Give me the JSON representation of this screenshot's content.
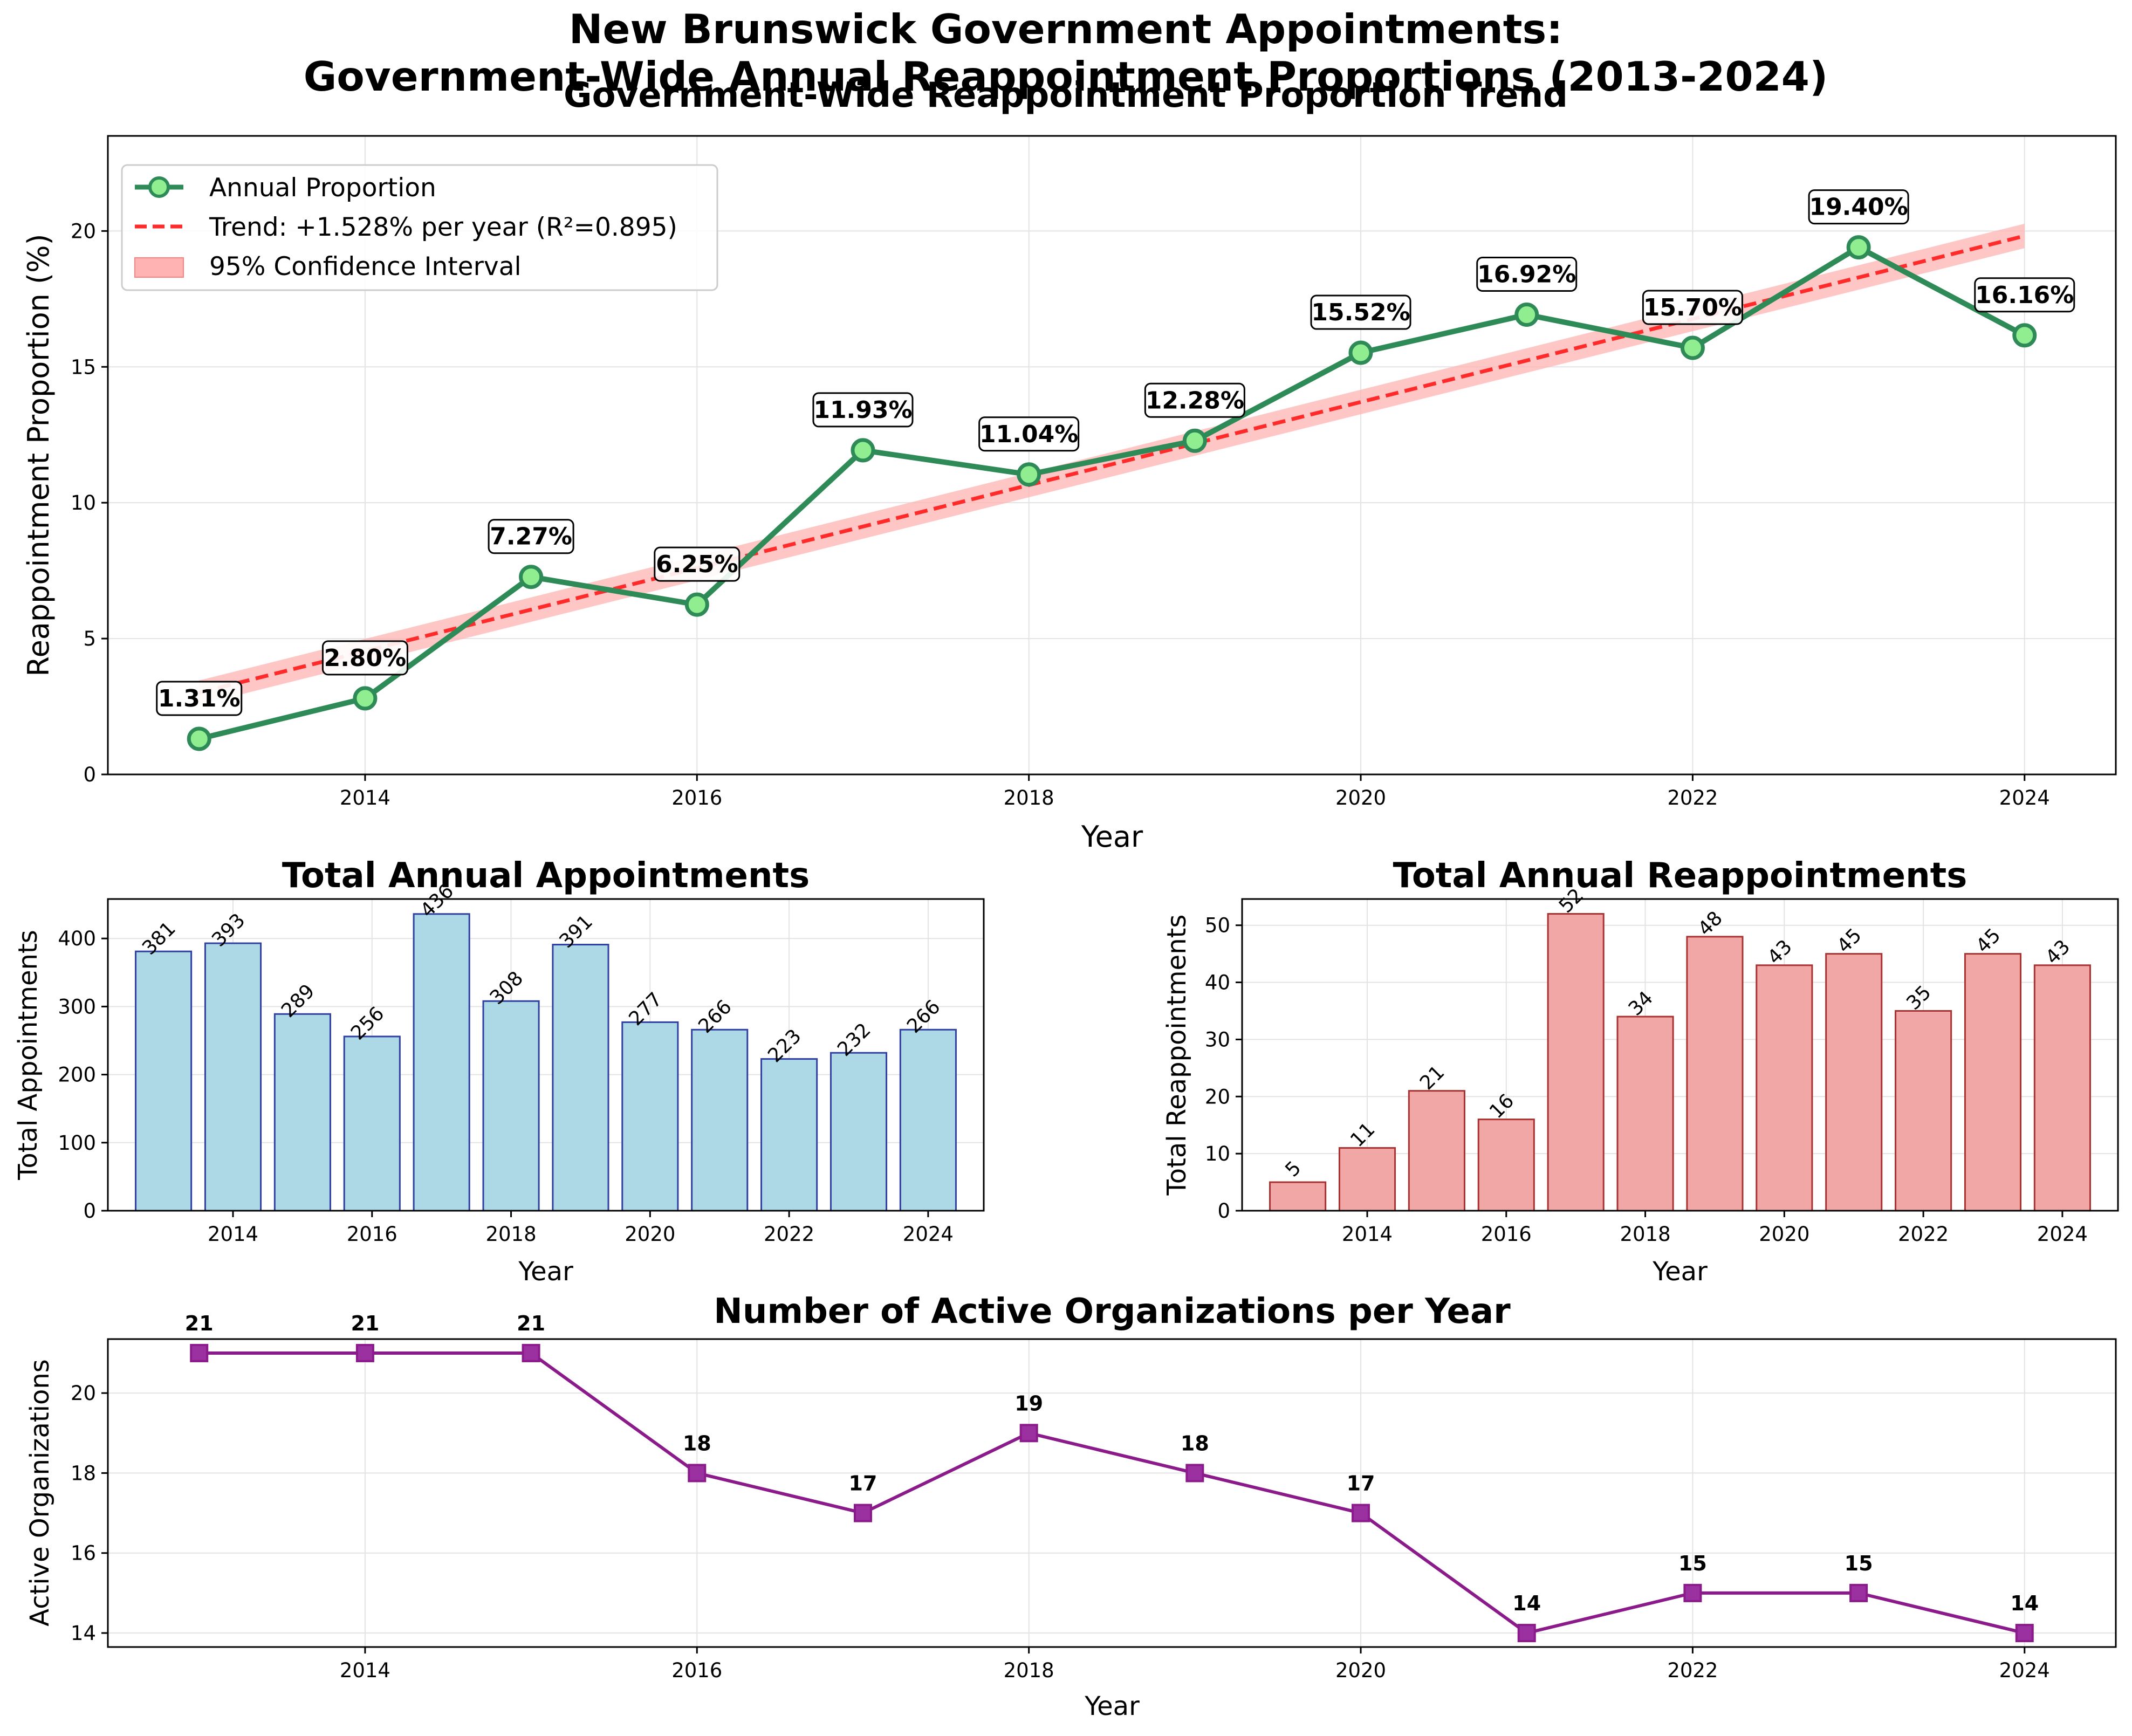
{
  "page": {
    "suptitle_line1": "New Brunswick Government Appointments:",
    "suptitle_line2": "Government-Wide Annual Reappointment Proportions (2013-2024)"
  },
  "chart_data": [
    {
      "type": "line",
      "title": "Government-Wide Reappointment Proportion Trend",
      "xlabel": "Year",
      "ylabel": "Reappointment Proportion (%)",
      "x": [
        2013,
        2014,
        2015,
        2016,
        2017,
        2018,
        2019,
        2020,
        2021,
        2022,
        2023,
        2024
      ],
      "series": [
        {
          "name": "Annual Proportion",
          "values": [
            1.31,
            2.8,
            7.27,
            6.25,
            11.93,
            11.04,
            12.28,
            15.52,
            16.92,
            15.7,
            19.4,
            16.16
          ],
          "color": "#2e8b57",
          "marker_fill": "#90ee90"
        }
      ],
      "data_labels": [
        "1.31%",
        "2.80%",
        "7.27%",
        "6.25%",
        "11.93%",
        "11.04%",
        "12.28%",
        "15.52%",
        "16.92%",
        "15.70%",
        "19.40%",
        "16.16%"
      ],
      "trend": {
        "label": "Trend: +1.528% per year (R²=0.895)",
        "slope": 1.528,
        "start_value": 3.01,
        "color": "#ff2a2a"
      },
      "confidence_band": {
        "label": "95% Confidence Interval",
        "halfwidth": 0.45,
        "color": "#ffb3b3"
      },
      "x_ticks": [
        "2014",
        "2016",
        "2018",
        "2020",
        "2022",
        "2024"
      ],
      "y_ticks": [
        "0",
        "5",
        "10",
        "15",
        "20"
      ],
      "xlim": [
        2012.45,
        2024.55
      ],
      "ylim": [
        0,
        23.5
      ],
      "grid": true,
      "legend_position": "top-left"
    },
    {
      "type": "bar",
      "title": "Total Annual Appointments",
      "xlabel": "Year",
      "ylabel": "Total Appointments",
      "x": [
        2013,
        2014,
        2015,
        2016,
        2017,
        2018,
        2019,
        2020,
        2021,
        2022,
        2023,
        2024
      ],
      "values": [
        381,
        393,
        289,
        256,
        436,
        308,
        391,
        277,
        266,
        223,
        232,
        266
      ],
      "data_labels": [
        "381",
        "393",
        "289",
        "256",
        "436",
        "308",
        "391",
        "277",
        "266",
        "223",
        "232",
        "266"
      ],
      "x_ticks": [
        "2014",
        "2016",
        "2018",
        "2020",
        "2022",
        "2024"
      ],
      "y_ticks": [
        "0",
        "100",
        "200",
        "300",
        "400"
      ],
      "xlim": [
        2012.2,
        2024.8
      ],
      "ylim": [
        0,
        458
      ],
      "bar_color": "#add8e6",
      "edge_color": "#3040a0",
      "grid": true
    },
    {
      "type": "bar",
      "title": "Total Annual Reappointments",
      "xlabel": "Year",
      "ylabel": "Total Reappointments",
      "x": [
        2013,
        2014,
        2015,
        2016,
        2017,
        2018,
        2019,
        2020,
        2021,
        2022,
        2023,
        2024
      ],
      "values": [
        5,
        11,
        21,
        16,
        52,
        34,
        48,
        43,
        45,
        35,
        45,
        43
      ],
      "data_labels": [
        "5",
        "11",
        "21",
        "16",
        "52",
        "34",
        "48",
        "43",
        "45",
        "35",
        "45",
        "43"
      ],
      "x_ticks": [
        "2014",
        "2016",
        "2018",
        "2020",
        "2022",
        "2024"
      ],
      "y_ticks": [
        "0",
        "10",
        "20",
        "30",
        "40",
        "50"
      ],
      "xlim": [
        2012.2,
        2024.8
      ],
      "ylim": [
        0,
        54.6
      ],
      "bar_color": "#f2a7a7",
      "edge_color": "#a83232",
      "grid": true
    },
    {
      "type": "line",
      "title": "Number of Active Organizations per Year",
      "xlabel": "Year",
      "ylabel": "Active Organizations",
      "x": [
        2013,
        2014,
        2015,
        2016,
        2017,
        2018,
        2019,
        2020,
        2021,
        2022,
        2023,
        2024
      ],
      "series": [
        {
          "name": "Active Organizations",
          "values": [
            21,
            21,
            21,
            18,
            17,
            19,
            18,
            17,
            14,
            15,
            15,
            14
          ],
          "color": "#8b1a8b",
          "marker_fill": "#9b30a0"
        }
      ],
      "data_labels": [
        "21",
        "21",
        "21",
        "18",
        "17",
        "19",
        "18",
        "17",
        "14",
        "15",
        "15",
        "14"
      ],
      "x_ticks": [
        "2014",
        "2016",
        "2018",
        "2020",
        "2022",
        "2024"
      ],
      "y_ticks": [
        "14",
        "16",
        "18",
        "20"
      ],
      "xlim": [
        2012.45,
        2024.55
      ],
      "ylim": [
        13.65,
        21.35
      ],
      "grid": true
    }
  ]
}
